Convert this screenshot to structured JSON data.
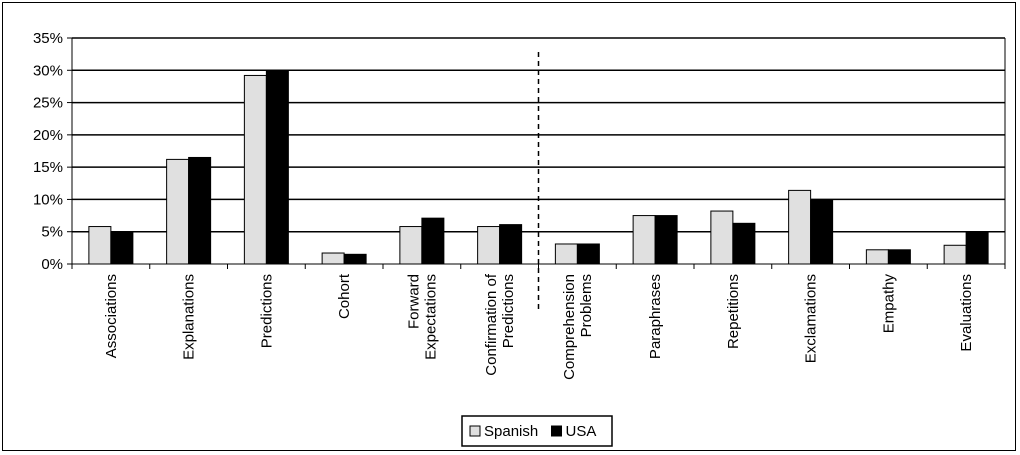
{
  "chart_data": {
    "type": "bar",
    "categories": [
      [
        "Associations"
      ],
      [
        "Explanations"
      ],
      [
        "Predictions"
      ],
      [
        "Cohort"
      ],
      [
        "Forward",
        "Expectations"
      ],
      [
        "Confirmation of",
        "Predictions"
      ],
      [
        "Comprehension",
        "Problems"
      ],
      [
        "Paraphrases"
      ],
      [
        "Repetitions"
      ],
      [
        "Exclamations"
      ],
      [
        "Empathy"
      ],
      [
        "Evaluations"
      ]
    ],
    "series": [
      {
        "name": "Spanish",
        "color": "#e0e0e0",
        "values": [
          5.8,
          16.2,
          29.2,
          1.7,
          5.8,
          5.8,
          3.1,
          7.5,
          8.2,
          11.4,
          2.2,
          2.9
        ]
      },
      {
        "name": "USA",
        "color": "#000000",
        "values": [
          5.0,
          16.5,
          30.0,
          1.5,
          7.1,
          6.1,
          3.1,
          7.5,
          6.3,
          9.9,
          2.2,
          5.0
        ]
      }
    ],
    "yticks": [
      "0%",
      "5%",
      "10%",
      "15%",
      "20%",
      "25%",
      "30%",
      "35%"
    ],
    "ylim": [
      0,
      35
    ],
    "divider_after_category_index": 5,
    "divider_style": "dashed",
    "grid": "horizontal",
    "legend_position": "bottom-center"
  }
}
